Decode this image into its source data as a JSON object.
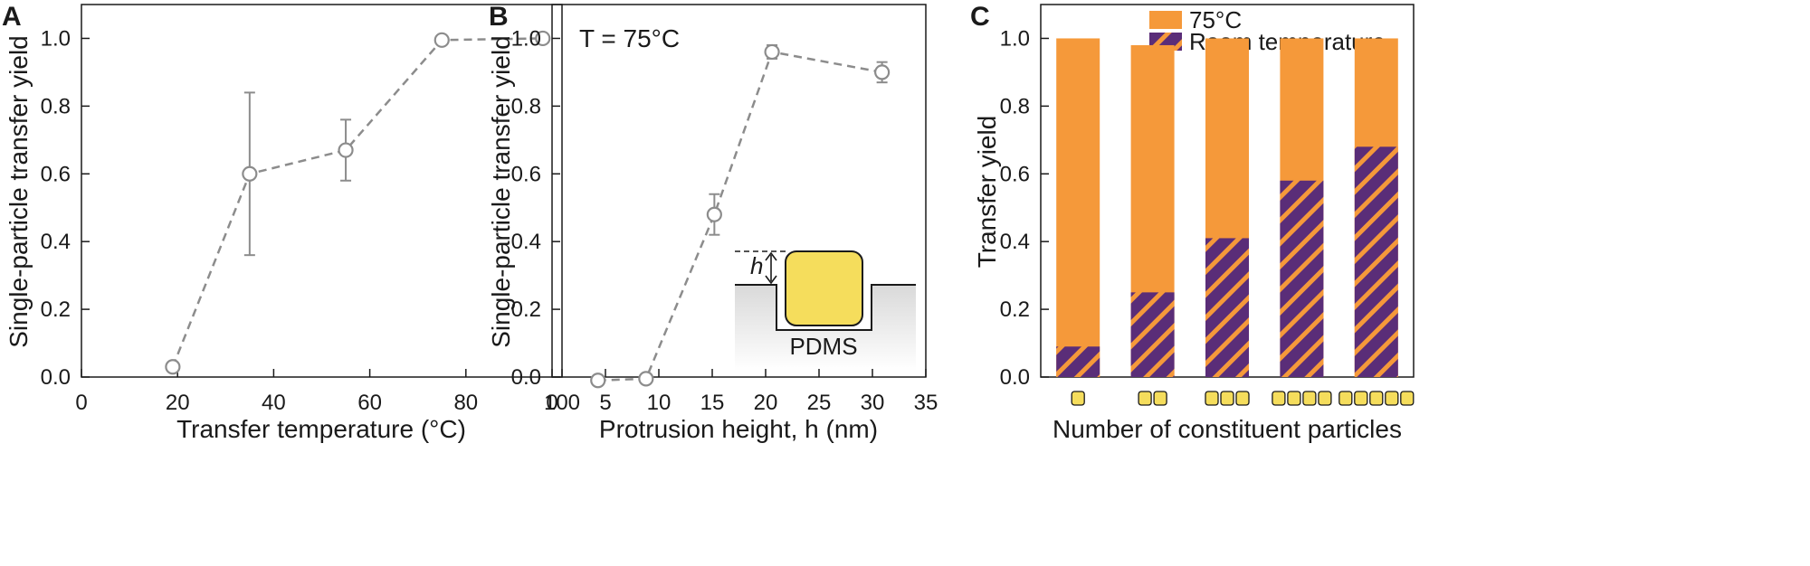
{
  "chart_data": [
    {
      "panel": "A",
      "type": "scatter",
      "xlabel": "Transfer temperature (°C)",
      "ylabel": "Single-particle transfer yield",
      "xlim": [
        0,
        100
      ],
      "ylim": [
        0,
        1.1
      ],
      "xticks": [
        0,
        20,
        40,
        60,
        80,
        100
      ],
      "yticks": [
        0.0,
        0.2,
        0.4,
        0.6,
        0.8,
        1.0
      ],
      "grid": false,
      "x": [
        19,
        35,
        55,
        75,
        96
      ],
      "y": [
        0.03,
        0.6,
        0.67,
        0.995,
        1.0
      ],
      "err": [
        0.01,
        0.24,
        0.09,
        0.005,
        0.01
      ],
      "color": "#8c8c8c"
    },
    {
      "panel": "B",
      "type": "scatter",
      "annotation": "T = 75°C",
      "xlabel": "Protrusion height, h (nm)",
      "ylabel": "Single-particle transfer yield",
      "xlim": [
        0,
        35
      ],
      "ylim": [
        0,
        1.1
      ],
      "xticks": [
        0,
        5,
        10,
        15,
        20,
        25,
        30,
        35
      ],
      "yticks": [
        0.0,
        0.2,
        0.4,
        0.6,
        0.8,
        1.0
      ],
      "grid": false,
      "x": [
        4.3,
        8.8,
        15.2,
        20.6,
        30.9
      ],
      "y": [
        -0.01,
        -0.005,
        0.48,
        0.96,
        0.9
      ],
      "err": [
        0.0,
        0.0,
        0.06,
        0.02,
        0.03
      ],
      "color": "#8c8c8c",
      "inset": {
        "h_label": "h",
        "substrate_label": "PDMS"
      }
    },
    {
      "panel": "C",
      "type": "bar",
      "xlabel": "Number of constituent particles",
      "ylabel": "Transfer yield",
      "ylim": [
        0,
        1.1
      ],
      "yticks": [
        0.0,
        0.2,
        0.4,
        0.6,
        0.8,
        1.0
      ],
      "grid": false,
      "legend_position": "top",
      "categories": [
        "1",
        "2",
        "3",
        "4",
        "5"
      ],
      "series": [
        {
          "name": "75°C",
          "values": [
            1.0,
            0.98,
            1.0,
            1.0,
            1.0
          ],
          "color": "#f5993a"
        },
        {
          "name": "Room temperature",
          "values": [
            0.09,
            0.25,
            0.41,
            0.58,
            0.68
          ],
          "color": "#5a2d78",
          "pattern": "hatched"
        }
      ],
      "particle_color": "#f5dd5c"
    }
  ]
}
